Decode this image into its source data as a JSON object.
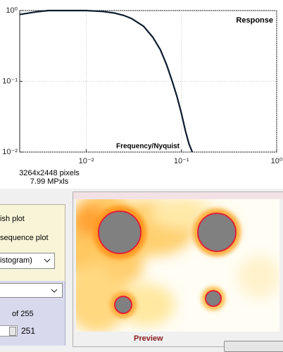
{
  "chart_data": {
    "type": "line",
    "xlabel": "Frequency/Nyquist",
    "annotation": "Response",
    "xscale": "log",
    "yscale": "log",
    "grid": true,
    "xlim": [
      0.002,
      1
    ],
    "ylim": [
      0.01,
      1
    ],
    "xticks": [
      {
        "value": 0.01,
        "label": "10⁻²"
      },
      {
        "value": 0.1,
        "label": "10⁻¹"
      },
      {
        "value": 1,
        "label": "10⁰"
      }
    ],
    "yticks": [
      {
        "value": 0.01,
        "label": "10⁻²"
      },
      {
        "value": 0.1,
        "label": "10⁻¹"
      },
      {
        "value": 1,
        "label": "10⁰"
      }
    ],
    "x": [
      0.002,
      0.003,
      0.004,
      0.01,
      0.015,
      0.02,
      0.025,
      0.03,
      0.04,
      0.05,
      0.06,
      0.07,
      0.08,
      0.09,
      0.1,
      0.11,
      0.12,
      0.13
    ],
    "series": [
      {
        "color": "#0d1b2e",
        "values": [
          0.88,
          0.96,
          1.0,
          1.0,
          0.97,
          0.92,
          0.85,
          0.77,
          0.6,
          0.42,
          0.28,
          0.17,
          0.1,
          0.06,
          0.035,
          0.02,
          0.013,
          0.01
        ]
      }
    ]
  },
  "info": {
    "size": "3264x2448 pixels",
    "megapixels": "7.99 MPxls"
  },
  "controls": {
    "radio_1": "ish plot",
    "radio_2": "sequence plot",
    "dropdown_1": "istogram)",
    "count_label": "of 255",
    "spinner": "251"
  },
  "preview": {
    "label": "Preview"
  }
}
